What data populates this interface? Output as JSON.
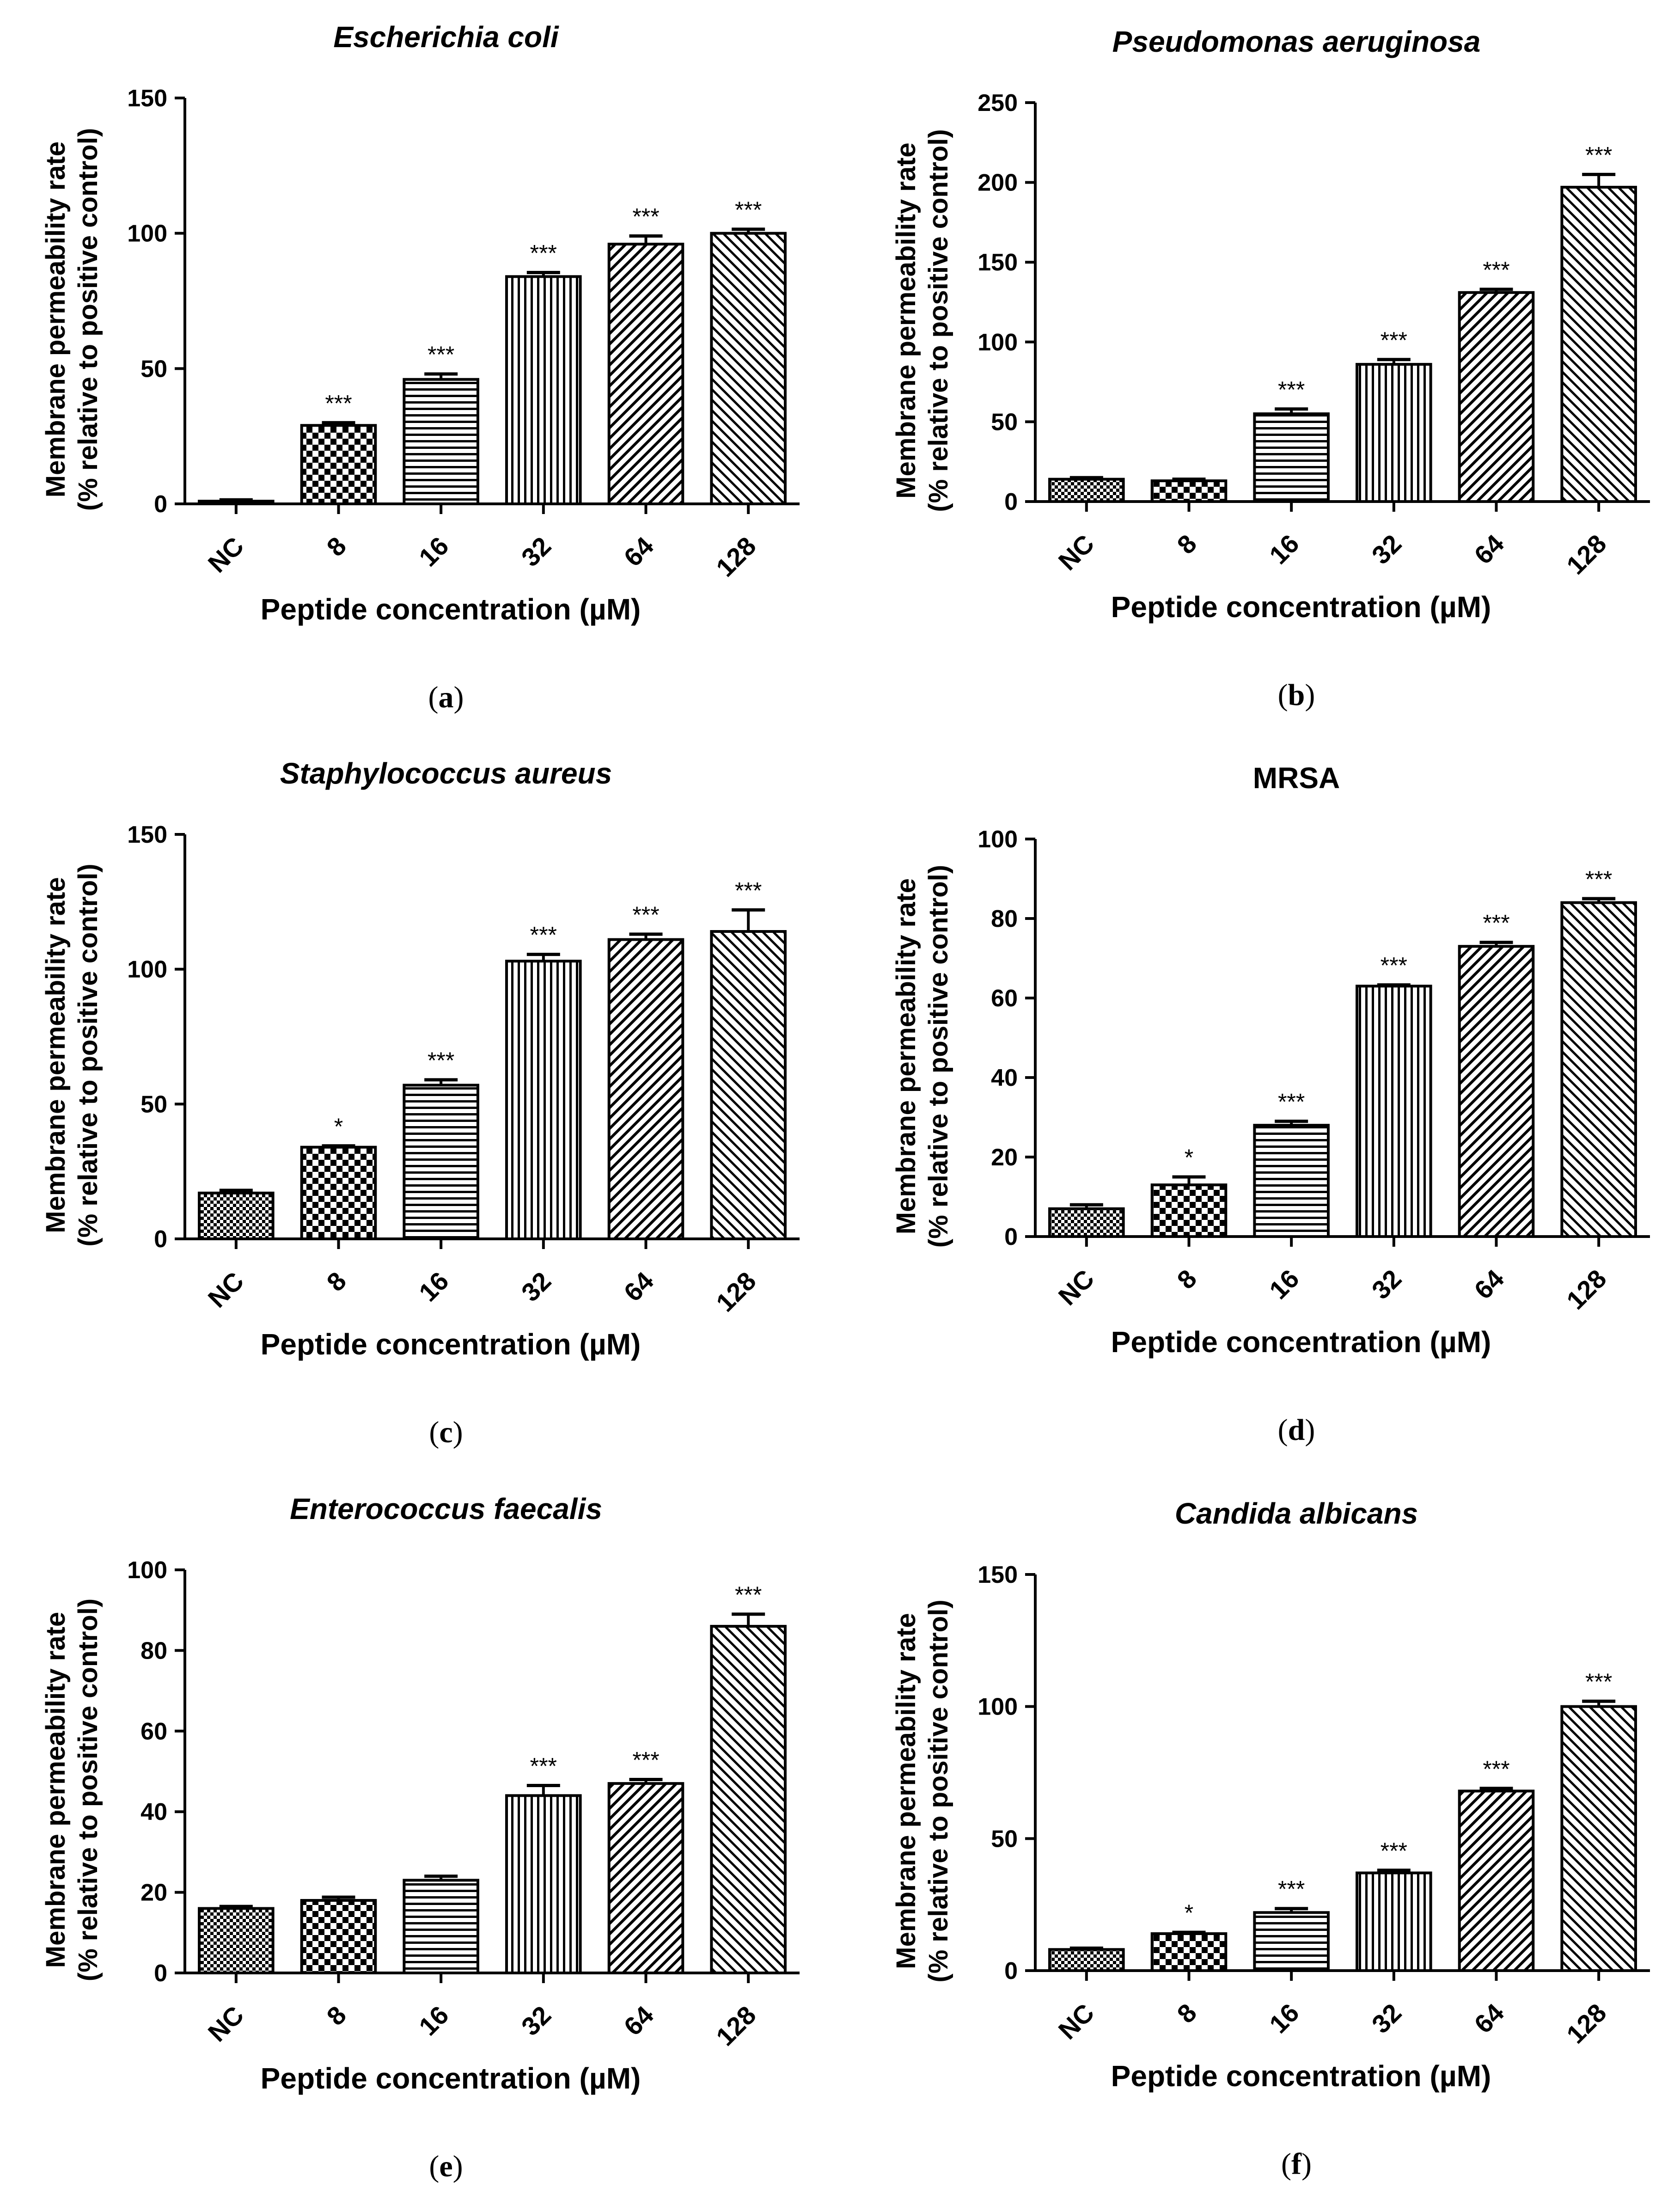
{
  "chart_data": [
    {
      "panel": "a",
      "type": "bar",
      "title": "Escherichia coli",
      "title_italic": true,
      "xlabel": "Peptide concentration (µM)",
      "ylabel": [
        "Membrane permeability rate",
        "(% relative to positive control)"
      ],
      "categories": [
        "NC",
        "8",
        "16",
        "32",
        "64",
        "128"
      ],
      "values": [
        1,
        29,
        46,
        84,
        96,
        100
      ],
      "errors": [
        0.5,
        1,
        2,
        1.5,
        3,
        1.5
      ],
      "significance": [
        "",
        "***",
        "***",
        "***",
        "***",
        "***"
      ],
      "ylim": [
        0,
        150
      ],
      "yticks": [
        0,
        50,
        100,
        150
      ]
    },
    {
      "panel": "b",
      "type": "bar",
      "title": "Pseudomonas aeruginosa",
      "title_italic": true,
      "xlabel": "Peptide concentration (µM)",
      "ylabel": [
        "Membrane permeability rate",
        "(% relative to positive control)"
      ],
      "categories": [
        "NC",
        "8",
        "16",
        "32",
        "64",
        "128"
      ],
      "values": [
        14,
        13,
        55,
        86,
        131,
        197
      ],
      "errors": [
        1,
        1,
        3,
        3,
        2,
        8
      ],
      "significance": [
        "",
        "",
        "***",
        "***",
        "***",
        "***"
      ],
      "ylim": [
        0,
        250
      ],
      "yticks": [
        0,
        50,
        100,
        150,
        200,
        250
      ]
    },
    {
      "panel": "c",
      "type": "bar",
      "title": "Staphylococcus aureus",
      "title_italic": true,
      "xlabel": "Peptide concentration (µM)",
      "ylabel": [
        "Membrane permeability rate",
        "(% relative to positive control)"
      ],
      "categories": [
        "NC",
        "8",
        "16",
        "32",
        "64",
        "128"
      ],
      "values": [
        17,
        34,
        57,
        103,
        111,
        114
      ],
      "errors": [
        1,
        0.5,
        2,
        2.5,
        2,
        8
      ],
      "significance": [
        "",
        "*",
        "***",
        "***",
        "***",
        "***"
      ],
      "ylim": [
        0,
        150
      ],
      "yticks": [
        0,
        50,
        100,
        150
      ]
    },
    {
      "panel": "d",
      "type": "bar",
      "title": "MRSA",
      "title_italic": false,
      "xlabel": "Peptide concentration (µM)",
      "ylabel": [
        "Membrane permeability rate",
        "(% relative to positive control)"
      ],
      "categories": [
        "NC",
        "8",
        "16",
        "32",
        "64",
        "128"
      ],
      "values": [
        7,
        13,
        28,
        63,
        73,
        84
      ],
      "errors": [
        1,
        2,
        1,
        0.3,
        1,
        1
      ],
      "significance": [
        "",
        "*",
        "***",
        "***",
        "***",
        "***"
      ],
      "ylim": [
        0,
        100
      ],
      "yticks": [
        0,
        20,
        40,
        60,
        80,
        100
      ]
    },
    {
      "panel": "e",
      "type": "bar",
      "title": "Enterococcus faecalis",
      "title_italic": true,
      "xlabel": "Peptide concentration (µM)",
      "ylabel": [
        "Membrane permeability rate",
        "(% relative to positive control)"
      ],
      "categories": [
        "NC",
        "8",
        "16",
        "32",
        "64",
        "128"
      ],
      "values": [
        16,
        18,
        23,
        44,
        47,
        86
      ],
      "errors": [
        0.5,
        0.8,
        1,
        2.5,
        1,
        3
      ],
      "significance": [
        "",
        "",
        "",
        "***",
        "***",
        "***"
      ],
      "ylim": [
        0,
        100
      ],
      "yticks": [
        0,
        20,
        40,
        60,
        80,
        100
      ]
    },
    {
      "panel": "f",
      "type": "bar",
      "title": "Candida albicans",
      "title_italic": true,
      "xlabel": "Peptide concentration (µM)",
      "ylabel": [
        "Membrane permeability rate",
        "(% relative to positive control)"
      ],
      "categories": [
        "NC",
        "8",
        "16",
        "32",
        "64",
        "128"
      ],
      "values": [
        8,
        14,
        22,
        37,
        68,
        100
      ],
      "errors": [
        0.5,
        0.5,
        1.5,
        1,
        1,
        2
      ],
      "significance": [
        "",
        "*",
        "***",
        "***",
        "***",
        "***"
      ],
      "ylim": [
        0,
        150
      ],
      "yticks": [
        0,
        50,
        100,
        150
      ]
    }
  ],
  "bar_patterns": [
    "checker-small",
    "checker-large",
    "horizontal-lines",
    "vertical-lines",
    "diagonal-up",
    "diagonal-down"
  ]
}
